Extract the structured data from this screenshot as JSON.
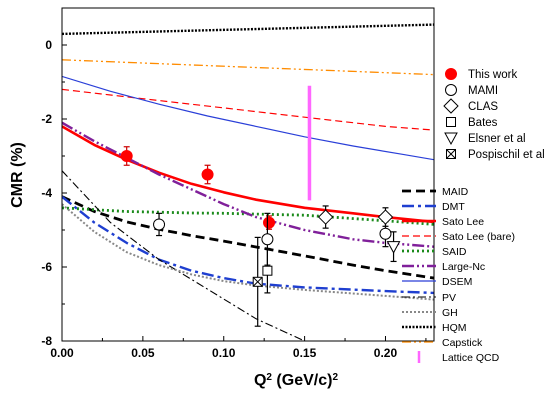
{
  "chart_data": {
    "type": "line",
    "xlabel": "Q",
    "xlabel_sup": "2",
    "xlabel_units": " (GeV/c)",
    "xlabel_units_sup": "2",
    "ylabel": "CMR (%)",
    "xlim": [
      0,
      0.23
    ],
    "ylim": [
      -8,
      1
    ],
    "x_ticks": [
      0.0,
      0.05,
      0.1,
      0.15,
      0.2
    ],
    "x_tick_labels": [
      "0.00",
      "0.05",
      "0.10",
      "0.15",
      "0.20"
    ],
    "y_ticks": [
      0,
      -2,
      -4,
      -6,
      -8
    ],
    "y_tick_labels": [
      "0",
      "-2",
      "-4",
      "-6",
      "-8"
    ],
    "legend_position": "right",
    "data_series": [
      {
        "name": "This work",
        "color": "#ff0000",
        "marker": "filled-circle",
        "points": [
          [
            0.04,
            -3.0,
            0.25
          ],
          [
            0.09,
            -3.5,
            0.25
          ],
          [
            0.128,
            -4.8,
            0.18
          ]
        ]
      },
      {
        "name": "MAMI",
        "color": "#000000",
        "marker": "open-circle",
        "points": [
          [
            0.06,
            -4.85,
            0.3
          ],
          [
            0.127,
            -5.25,
            0.7
          ],
          [
            0.2,
            -5.1,
            0.35
          ]
        ]
      },
      {
        "name": "CLAS",
        "color": "#000000",
        "marker": "open-diamond",
        "points": [
          [
            0.163,
            -4.65,
            0.3
          ],
          [
            0.2,
            -4.65,
            0.25
          ]
        ]
      },
      {
        "name": "Bates",
        "color": "#000000",
        "marker": "open-square",
        "points": [
          [
            0.127,
            -6.1,
            0.6
          ]
        ]
      },
      {
        "name": "Elsner et al",
        "color": "#000000",
        "marker": "open-triangle-down",
        "points": [
          [
            0.205,
            -5.45,
            0.4
          ]
        ]
      },
      {
        "name": "Pospischil et al",
        "color": "#000000",
        "marker": "boxed-x",
        "points": [
          [
            0.121,
            -6.4,
            1.2
          ]
        ]
      }
    ],
    "curves": [
      {
        "name": "MAID",
        "color": "#000000",
        "dash": "9,5",
        "width": 2.8,
        "x": [
          0,
          0.02,
          0.04,
          0.06,
          0.08,
          0.1,
          0.12,
          0.14,
          0.16,
          0.18,
          0.2,
          0.23
        ],
        "y": [
          -4.1,
          -4.5,
          -4.78,
          -4.98,
          -5.15,
          -5.3,
          -5.46,
          -5.62,
          -5.78,
          -5.95,
          -6.1,
          -6.3
        ]
      },
      {
        "name": "DMT",
        "color": "#1f3fd0",
        "dash": "12,4,3,4",
        "width": 2.4,
        "x": [
          0,
          0.02,
          0.04,
          0.06,
          0.08,
          0.1,
          0.12,
          0.15,
          0.2,
          0.23
        ],
        "y": [
          -4.1,
          -4.8,
          -5.35,
          -5.8,
          -6.1,
          -6.3,
          -6.45,
          -6.55,
          -6.65,
          -6.7
        ]
      },
      {
        "name": "Sato Lee",
        "color": "#ff0000",
        "dash": "",
        "width": 2.6,
        "x": [
          0,
          0.02,
          0.04,
          0.06,
          0.08,
          0.1,
          0.12,
          0.15,
          0.18,
          0.2,
          0.23
        ],
        "y": [
          -2.2,
          -2.7,
          -3.1,
          -3.45,
          -3.75,
          -3.98,
          -4.18,
          -4.4,
          -4.55,
          -4.65,
          -4.78
        ]
      },
      {
        "name": "Sato Lee (bare)",
        "color": "#ff0000",
        "dash": "7,4",
        "width": 1.2,
        "x": [
          0,
          0.05,
          0.1,
          0.15,
          0.2,
          0.23
        ],
        "y": [
          -1.2,
          -1.45,
          -1.7,
          -1.95,
          -2.2,
          -2.3
        ]
      },
      {
        "name": "SAID",
        "color": "#1a8a1a",
        "dash": "2,3",
        "width": 2.8,
        "x": [
          0,
          0.02,
          0.04,
          0.06,
          0.08,
          0.1,
          0.12,
          0.15,
          0.2,
          0.23
        ],
        "y": [
          -4.4,
          -4.45,
          -4.5,
          -4.52,
          -4.54,
          -4.55,
          -4.57,
          -4.6,
          -4.75,
          -4.85
        ]
      },
      {
        "name": "Large-Nc",
        "color": "#80209a",
        "dash": "12,3,2,3,2,3",
        "width": 2.4,
        "x": [
          0,
          0.02,
          0.04,
          0.06,
          0.08,
          0.1,
          0.12,
          0.15,
          0.18,
          0.2,
          0.23
        ],
        "y": [
          -2.1,
          -2.6,
          -3.05,
          -3.5,
          -3.9,
          -4.3,
          -4.65,
          -5.0,
          -5.25,
          -5.35,
          -5.45
        ]
      },
      {
        "name": "DSEM",
        "color": "#2a3fd8",
        "dash": "",
        "width": 1.2,
        "x": [
          0,
          0.03,
          0.06,
          0.09,
          0.12,
          0.15,
          0.18,
          0.21,
          0.23
        ],
        "y": [
          -0.85,
          -1.25,
          -1.6,
          -1.92,
          -2.2,
          -2.48,
          -2.73,
          -2.95,
          -3.1
        ]
      },
      {
        "name": "PV",
        "color": "#000000",
        "dash": "8,3,2,3",
        "width": 1.1,
        "x": [
          0,
          0.03,
          0.06,
          0.09,
          0.12,
          0.15
        ],
        "y": [
          -3.4,
          -4.8,
          -5.8,
          -6.6,
          -7.4,
          -8.0
        ]
      },
      {
        "name": "GH",
        "color": "#888888",
        "dash": "2,2",
        "width": 2.0,
        "x": [
          0,
          0.02,
          0.04,
          0.06,
          0.08,
          0.1,
          0.12,
          0.15,
          0.2,
          0.23
        ],
        "y": [
          -4.3,
          -5.05,
          -5.6,
          -5.95,
          -6.2,
          -6.38,
          -6.5,
          -6.62,
          -6.78,
          -6.88
        ]
      },
      {
        "name": "HQM",
        "color": "#000000",
        "dash": "2,1.5",
        "width": 2.4,
        "x": [
          0,
          0.23
        ],
        "y": [
          0.3,
          0.55
        ]
      },
      {
        "name": "Capstick",
        "color": "#ff8c00",
        "dash": "9,3,2,3,2,3",
        "width": 1.3,
        "x": [
          0,
          0.23
        ],
        "y": [
          -0.4,
          -0.8
        ]
      }
    ],
    "lattice_qcd": {
      "name": "Lattice QCD",
      "color": "#ff66ff",
      "x": 0.153,
      "y_low": -4.2,
      "y_high": -1.1
    },
    "legend_order": [
      "This work",
      "MAMI",
      "CLAS",
      "Bates",
      "Elsner et al",
      "Pospischil et al",
      "MAID",
      "DMT",
      "Sato Lee",
      "Sato Lee (bare)",
      "SAID",
      "Large-Nc",
      "DSEM",
      "PV",
      "GH",
      "HQM",
      "Capstick",
      "Lattice QCD"
    ]
  }
}
